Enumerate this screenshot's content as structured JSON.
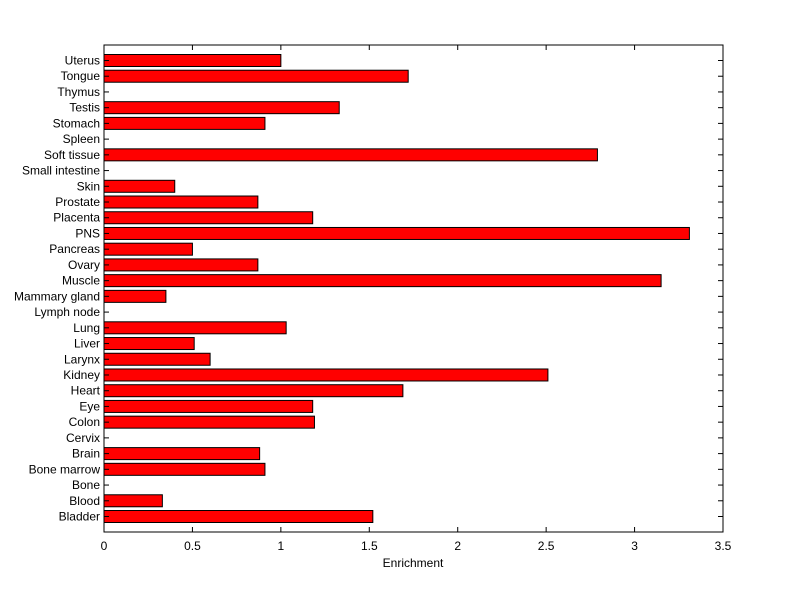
{
  "chart_data": {
    "type": "bar",
    "orientation": "horizontal",
    "categories": [
      "Uterus",
      "Tongue",
      "Thymus",
      "Testis",
      "Stomach",
      "Spleen",
      "Soft tissue",
      "Small intestine",
      "Skin",
      "Prostate",
      "Placenta",
      "PNS",
      "Pancreas",
      "Ovary",
      "Muscle",
      "Mammary gland",
      "Lymph node",
      "Lung",
      "Liver",
      "Larynx",
      "Kidney",
      "Heart",
      "Eye",
      "Colon",
      "Cervix",
      "Brain",
      "Bone marrow",
      "Bone",
      "Blood",
      "Bladder"
    ],
    "values": [
      1.0,
      1.72,
      0,
      1.33,
      0.91,
      0,
      2.79,
      0,
      0.4,
      0.87,
      1.18,
      3.31,
      0.5,
      0.87,
      3.15,
      0.35,
      0,
      1.03,
      0.51,
      0.6,
      2.51,
      1.69,
      1.18,
      1.19,
      0,
      0.88,
      0.91,
      0,
      0.33,
      1.52
    ],
    "xlabel": "Enrichment",
    "ylabel": "",
    "title": "",
    "xlim": [
      0,
      3.5
    ],
    "xticks": [
      "0",
      "0.5",
      "1",
      "1.5",
      "2",
      "2.5",
      "3",
      "3.5"
    ],
    "grid": false,
    "bar_color": "#ff0000",
    "edge_color": "#000000"
  }
}
